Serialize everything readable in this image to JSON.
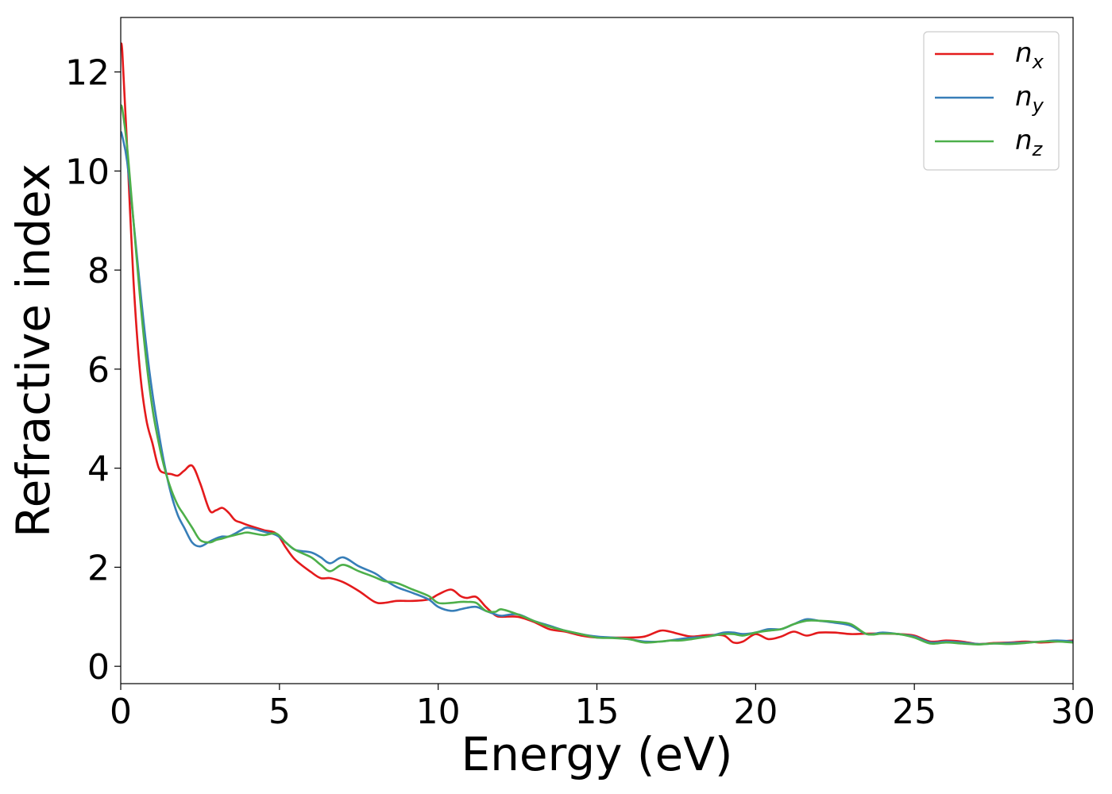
{
  "chart_data": {
    "type": "line",
    "title": "",
    "xlabel": "Energy (eV)",
    "ylabel": "Refractive index",
    "xlim": [
      0,
      30
    ],
    "ylim": [
      -0.35,
      13.1
    ],
    "xticks": [
      0,
      5,
      10,
      15,
      20,
      25,
      30
    ],
    "yticks": [
      0,
      2,
      4,
      6,
      8,
      10,
      12
    ],
    "grid": false,
    "legend_position": "top-right",
    "series": [
      {
        "name": "n",
        "subscript": "x",
        "color": "#e41a1c",
        "x": [
          0.0,
          0.05,
          0.2,
          0.4,
          0.6,
          0.8,
          1.0,
          1.2,
          1.4,
          1.6,
          1.8,
          2.0,
          2.25,
          2.5,
          2.8,
          3.0,
          3.2,
          3.4,
          3.6,
          3.8,
          4.0,
          4.5,
          4.9,
          5.2,
          5.5,
          6.0,
          6.3,
          6.6,
          7.0,
          7.5,
          8.0,
          8.3,
          8.7,
          9.2,
          9.7,
          10.0,
          10.4,
          10.7,
          10.9,
          11.2,
          11.5,
          11.8,
          12.0,
          12.5,
          13.0,
          13.5,
          14.0,
          14.5,
          15.0,
          15.5,
          16.0,
          16.5,
          17.0,
          17.3,
          17.6,
          18.0,
          18.5,
          19.0,
          19.3,
          19.6,
          20.0,
          20.4,
          20.8,
          21.2,
          21.6,
          22.0,
          22.5,
          23.0,
          23.5,
          24.0,
          24.5,
          25.0,
          25.5,
          26.0,
          26.5,
          27.0,
          27.5,
          28.0,
          28.5,
          29.0,
          29.5,
          30.0
        ],
        "y": [
          12.5,
          12.4,
          10.5,
          7.8,
          6.0,
          5.0,
          4.5,
          4.0,
          3.9,
          3.88,
          3.85,
          3.95,
          4.05,
          3.7,
          3.15,
          3.15,
          3.2,
          3.1,
          2.95,
          2.9,
          2.85,
          2.75,
          2.68,
          2.4,
          2.15,
          1.9,
          1.78,
          1.78,
          1.7,
          1.52,
          1.3,
          1.28,
          1.32,
          1.32,
          1.35,
          1.45,
          1.55,
          1.42,
          1.38,
          1.4,
          1.2,
          1.03,
          1.0,
          1.0,
          0.9,
          0.75,
          0.7,
          0.62,
          0.58,
          0.58,
          0.58,
          0.6,
          0.72,
          0.7,
          0.65,
          0.6,
          0.63,
          0.62,
          0.48,
          0.5,
          0.65,
          0.55,
          0.6,
          0.7,
          0.62,
          0.68,
          0.68,
          0.65,
          0.66,
          0.66,
          0.65,
          0.62,
          0.5,
          0.52,
          0.5,
          0.45,
          0.47,
          0.48,
          0.5,
          0.48,
          0.5,
          0.52
        ]
      },
      {
        "name": "n",
        "subscript": "y",
        "color": "#377eb8",
        "x": [
          0.0,
          0.05,
          0.2,
          0.4,
          0.6,
          0.8,
          1.0,
          1.2,
          1.4,
          1.6,
          1.8,
          2.0,
          2.25,
          2.5,
          2.8,
          3.0,
          3.2,
          3.4,
          3.6,
          3.8,
          4.0,
          4.5,
          4.9,
          5.2,
          5.5,
          6.0,
          6.3,
          6.6,
          7.0,
          7.5,
          8.0,
          8.3,
          8.7,
          9.2,
          9.7,
          10.0,
          10.4,
          10.7,
          10.9,
          11.2,
          11.5,
          11.8,
          12.0,
          12.5,
          13.0,
          13.5,
          14.0,
          14.5,
          15.0,
          15.5,
          16.0,
          16.5,
          17.0,
          17.3,
          17.6,
          18.0,
          18.5,
          19.0,
          19.3,
          19.6,
          20.0,
          20.4,
          20.8,
          21.2,
          21.6,
          22.0,
          22.5,
          23.0,
          23.5,
          24.0,
          24.5,
          25.0,
          25.5,
          26.0,
          26.5,
          27.0,
          27.5,
          28.0,
          28.5,
          29.0,
          29.5,
          30.0
        ],
        "y": [
          10.8,
          10.7,
          10.2,
          9.0,
          7.7,
          6.5,
          5.5,
          4.7,
          4.0,
          3.45,
          3.05,
          2.8,
          2.5,
          2.42,
          2.52,
          2.58,
          2.62,
          2.62,
          2.68,
          2.75,
          2.8,
          2.72,
          2.65,
          2.5,
          2.35,
          2.3,
          2.2,
          2.08,
          2.2,
          2.02,
          1.88,
          1.75,
          1.6,
          1.48,
          1.35,
          1.2,
          1.12,
          1.15,
          1.18,
          1.2,
          1.12,
          1.05,
          1.02,
          1.05,
          0.92,
          0.82,
          0.72,
          0.65,
          0.6,
          0.58,
          0.55,
          0.5,
          0.5,
          0.52,
          0.55,
          0.58,
          0.6,
          0.68,
          0.68,
          0.65,
          0.68,
          0.75,
          0.75,
          0.85,
          0.95,
          0.92,
          0.88,
          0.82,
          0.65,
          0.68,
          0.65,
          0.6,
          0.48,
          0.5,
          0.48,
          0.45,
          0.46,
          0.47,
          0.48,
          0.5,
          0.52,
          0.5
        ]
      },
      {
        "name": "n",
        "subscript": "z",
        "color": "#4daf4a",
        "x": [
          0.0,
          0.05,
          0.2,
          0.4,
          0.6,
          0.8,
          1.0,
          1.2,
          1.4,
          1.6,
          1.8,
          2.0,
          2.25,
          2.5,
          2.8,
          3.0,
          3.2,
          3.4,
          3.6,
          3.8,
          4.0,
          4.5,
          4.9,
          5.2,
          5.5,
          6.0,
          6.3,
          6.6,
          7.0,
          7.5,
          8.0,
          8.3,
          8.7,
          9.2,
          9.7,
          10.0,
          10.4,
          10.7,
          10.9,
          11.2,
          11.5,
          11.8,
          12.0,
          12.5,
          13.0,
          13.5,
          14.0,
          14.5,
          15.0,
          15.5,
          16.0,
          16.5,
          17.0,
          17.3,
          17.6,
          18.0,
          18.5,
          19.0,
          19.3,
          19.6,
          20.0,
          20.4,
          20.8,
          21.2,
          21.6,
          22.0,
          22.5,
          23.0,
          23.5,
          24.0,
          24.5,
          25.0,
          25.5,
          26.0,
          26.5,
          27.0,
          27.5,
          28.0,
          28.5,
          29.0,
          29.5,
          30.0
        ],
        "y": [
          11.3,
          11.25,
          10.5,
          9.0,
          7.5,
          6.2,
          5.2,
          4.5,
          3.95,
          3.55,
          3.25,
          3.05,
          2.8,
          2.55,
          2.5,
          2.55,
          2.58,
          2.62,
          2.65,
          2.68,
          2.7,
          2.65,
          2.68,
          2.5,
          2.35,
          2.2,
          2.05,
          1.92,
          2.05,
          1.92,
          1.8,
          1.72,
          1.68,
          1.55,
          1.42,
          1.28,
          1.28,
          1.3,
          1.3,
          1.28,
          1.12,
          1.1,
          1.15,
          1.05,
          0.92,
          0.8,
          0.72,
          0.65,
          0.58,
          0.57,
          0.55,
          0.48,
          0.5,
          0.52,
          0.52,
          0.55,
          0.6,
          0.65,
          0.65,
          0.62,
          0.68,
          0.72,
          0.75,
          0.85,
          0.92,
          0.92,
          0.9,
          0.85,
          0.65,
          0.66,
          0.65,
          0.58,
          0.46,
          0.48,
          0.46,
          0.44,
          0.46,
          0.45,
          0.47,
          0.5,
          0.5,
          0.48
        ]
      }
    ]
  }
}
